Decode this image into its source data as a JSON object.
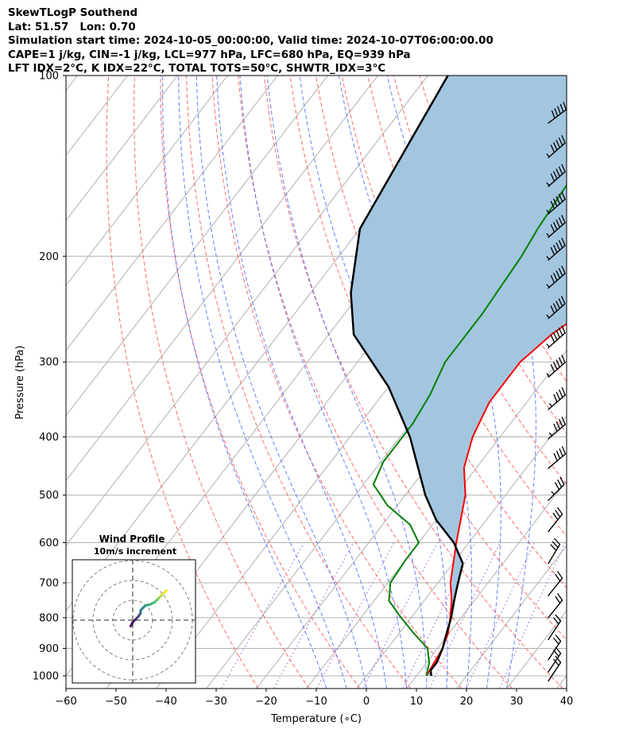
{
  "header": {
    "line1": "SkewTLogP Southend",
    "line2": "Lat: 51.57   Lon: 0.70",
    "line3": "Simulation start time: 2024-10-05_00:00:00, Valid time: 2024-10-07T06:00:00.00",
    "line4": "CAPE=1 j/kg, CIN=-1 j/kg, LCL=977 hPa, LFC=680 hPa, EQ=939 hPa",
    "line5": "LFT IDX=2°C, K IDX=22°C, TOTAL TOTS=50°C, SHWTR_IDX=3°C"
  },
  "chart_data": [
    {
      "type": "line",
      "subtype": "skew-t log-p",
      "xlabel": "Temperature (∘C)",
      "ylabel": "Pressure (hPa)",
      "xlim": [
        -60,
        40
      ],
      "ylim": [
        1050,
        100
      ],
      "yscale": "log",
      "x_ticks": [
        -60,
        -50,
        -40,
        -30,
        -20,
        -10,
        0,
        10,
        20,
        30,
        40
      ],
      "x_tick_labels": [
        "−60",
        "−50",
        "−40",
        "−30",
        "−20",
        "−10",
        "0",
        "10",
        "20",
        "30",
        "40"
      ],
      "y_ticks": [
        1000,
        900,
        800,
        700,
        600,
        500,
        400,
        300,
        200,
        100
      ],
      "grid": true,
      "colors": {
        "temperature": "#ff0000",
        "dewpoint": "#008000",
        "parcel": "#000000",
        "cape_fill": "#a3c6e0"
      },
      "series": [
        {
          "key": "temperature",
          "x": [
            12,
            11.5,
            11,
            9.8,
            7.8,
            5.5,
            2.5,
            -2.5,
            -8,
            -12.5,
            -15.5,
            -17.5,
            -17.5,
            -15.5,
            -10,
            -4,
            -1,
            -1.5,
            -2,
            -2.5,
            -3.5,
            -5.5,
            -8
          ],
          "y": [
            1000,
            950,
            900,
            850,
            800,
            750,
            700,
            600,
            500,
            450,
            400,
            350,
            300,
            270,
            230,
            200,
            185,
            170,
            155,
            140,
            120,
            110,
            100
          ]
        },
        {
          "key": "dewpoint",
          "x": [
            12,
            10.5,
            8,
            3,
            -2,
            -7,
            -9.5,
            -10,
            -10,
            -14.5,
            -22,
            -28,
            -29.5,
            -29.5,
            -29.5,
            -30.5,
            -32.5,
            -32.5,
            -33.5,
            -34.5,
            -35.5,
            -36,
            -36.5,
            -37.5,
            -40
          ],
          "y": [
            1000,
            950,
            900,
            850,
            800,
            750,
            700,
            640,
            600,
            560,
            520,
            480,
            440,
            420,
            380,
            340,
            300,
            250,
            200,
            180,
            150,
            130,
            120,
            110,
            100
          ]
        },
        {
          "key": "parcel",
          "x": [
            13,
            12,
            12,
            11,
            9.5,
            8,
            6,
            4,
            2,
            -3,
            -10,
            -16,
            -28,
            -40,
            -55,
            -62,
            -70,
            -76
          ],
          "y": [
            1000,
            980,
            950,
            900,
            850,
            800,
            750,
            700,
            650,
            600,
            550,
            500,
            400,
            330,
            270,
            230,
            180,
            100
          ]
        }
      ],
      "dry_adiabats_theta_k": [
        250,
        260,
        270,
        280,
        290,
        300,
        310,
        320,
        330,
        340,
        350,
        360,
        370,
        380,
        390,
        400,
        410,
        420
      ],
      "moist_adiabats_start_c": [
        -6,
        -2,
        2,
        6,
        10,
        14,
        18,
        22,
        26,
        30
      ],
      "mixing_ratios_gkg": [
        0.4,
        1,
        2,
        4,
        7,
        10,
        16,
        24
      ],
      "wind_barbs": [
        {
          "p": 120,
          "u": -40,
          "v": -30
        },
        {
          "p": 137,
          "u": -40,
          "v": -35
        },
        {
          "p": 153,
          "u": -40,
          "v": -35
        },
        {
          "p": 170,
          "u": -40,
          "v": -35
        },
        {
          "p": 186,
          "u": -40,
          "v": -35
        },
        {
          "p": 203,
          "u": -40,
          "v": -35
        },
        {
          "p": 226,
          "u": -40,
          "v": -35
        },
        {
          "p": 254,
          "u": -45,
          "v": -40
        },
        {
          "p": 284,
          "u": -40,
          "v": -35
        },
        {
          "p": 318,
          "u": -40,
          "v": -35
        },
        {
          "p": 360,
          "u": -35,
          "v": -30
        },
        {
          "p": 403,
          "u": -35,
          "v": -30
        },
        {
          "p": 451,
          "u": -30,
          "v": -25
        },
        {
          "p": 510,
          "u": -25,
          "v": -25
        },
        {
          "p": 575,
          "u": -20,
          "v": -25
        },
        {
          "p": 650,
          "u": -15,
          "v": -25
        },
        {
          "p": 735,
          "u": -12,
          "v": -15
        },
        {
          "p": 800,
          "u": -12,
          "v": -15
        },
        {
          "p": 870,
          "u": -10,
          "v": -15
        },
        {
          "p": 940,
          "u": -10,
          "v": -15
        },
        {
          "p": 985,
          "u": -10,
          "v": -15
        },
        {
          "p": 1020,
          "u": -10,
          "v": -15
        }
      ]
    },
    {
      "type": "line",
      "subtype": "hodograph",
      "title": "Wind Profile",
      "subtitle": "10m/s increment",
      "rings": [
        10,
        20,
        30
      ],
      "u": [
        -1,
        0,
        1,
        2,
        3,
        3.5,
        4,
        4,
        5,
        6,
        7,
        9,
        11,
        12,
        13,
        14,
        15,
        16,
        17
      ],
      "v": [
        -3,
        -1,
        0,
        1,
        2,
        3,
        3.5,
        5,
        6,
        7,
        7.5,
        8,
        9,
        10,
        11,
        12,
        13,
        14,
        15
      ]
    }
  ]
}
